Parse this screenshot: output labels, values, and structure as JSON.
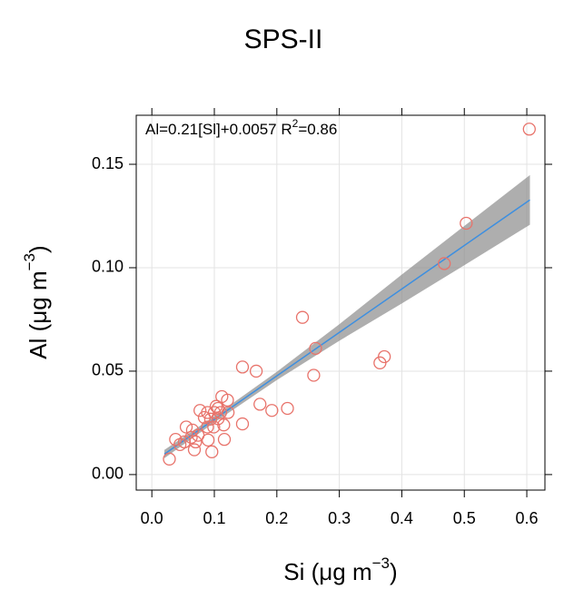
{
  "chart_data": {
    "type": "scatter",
    "title": "SPS-II",
    "x_label": [
      "Si (μg m",
      "−3",
      ")"
    ],
    "y_label": [
      "Al (μg m",
      "−3",
      ")"
    ],
    "annotation": [
      "Al=0.21[Sl]+0.0057 R",
      "2",
      "=0.86"
    ],
    "xlim": [
      -0.025,
      0.629
    ],
    "ylim": [
      -0.0075,
      0.1737
    ],
    "xticks": [
      {
        "value": 0,
        "label": "0.0"
      },
      0.1,
      0.2,
      0.3,
      0.4,
      0.5,
      0.6
    ],
    "yticks": [
      {
        "value": 0,
        "label": "0.00"
      },
      {
        "value": 0.05,
        "label": "0.05"
      },
      {
        "value": 0.1,
        "label": "0.10"
      },
      {
        "value": 0.15,
        "label": "0.15"
      }
    ],
    "grid": true,
    "points": {
      "color": "#e8736b",
      "x": [
        0.604,
        0.503,
        0.468,
        0.241,
        0.262,
        0.259,
        0.365,
        0.372,
        0.145,
        0.167,
        0.173,
        0.192,
        0.217,
        0.145,
        0.112,
        0.121,
        0.106,
        0.116,
        0.096,
        0.028,
        0.038,
        0.045,
        0.055,
        0.063,
        0.068,
        0.074,
        0.077,
        0.084,
        0.089,
        0.094,
        0.1,
        0.103,
        0.106,
        0.09,
        0.07,
        0.052,
        0.065,
        0.089,
        0.115,
        0.11,
        0.122,
        0.099
      ],
      "y": [
        0.167,
        0.1215,
        0.102,
        0.076,
        0.061,
        0.048,
        0.054,
        0.057,
        0.052,
        0.05,
        0.034,
        0.031,
        0.032,
        0.0245,
        0.0377,
        0.036,
        0.032,
        0.017,
        0.011,
        0.0075,
        0.017,
        0.0145,
        0.023,
        0.018,
        0.012,
        0.019,
        0.031,
        0.0276,
        0.023,
        0.0268,
        0.03,
        0.033,
        0.027,
        0.0167,
        0.0158,
        0.0158,
        0.0215,
        0.03,
        0.024,
        0.03,
        0.03,
        0.023
      ]
    },
    "fit": {
      "color": "#3d8fe0",
      "x": [
        0.02,
        0.605
      ],
      "y": [
        0.0099,
        0.1328
      ]
    },
    "band": {
      "color": "#8c8c8c",
      "x": [
        0.02,
        0.1,
        0.2,
        0.3,
        0.4,
        0.5,
        0.605
      ],
      "lower": [
        0.0079,
        0.0252,
        0.0457,
        0.0647,
        0.0827,
        0.1012,
        0.1208
      ],
      "upper": [
        0.0119,
        0.0282,
        0.0497,
        0.0727,
        0.0967,
        0.1202,
        0.1448
      ]
    }
  }
}
